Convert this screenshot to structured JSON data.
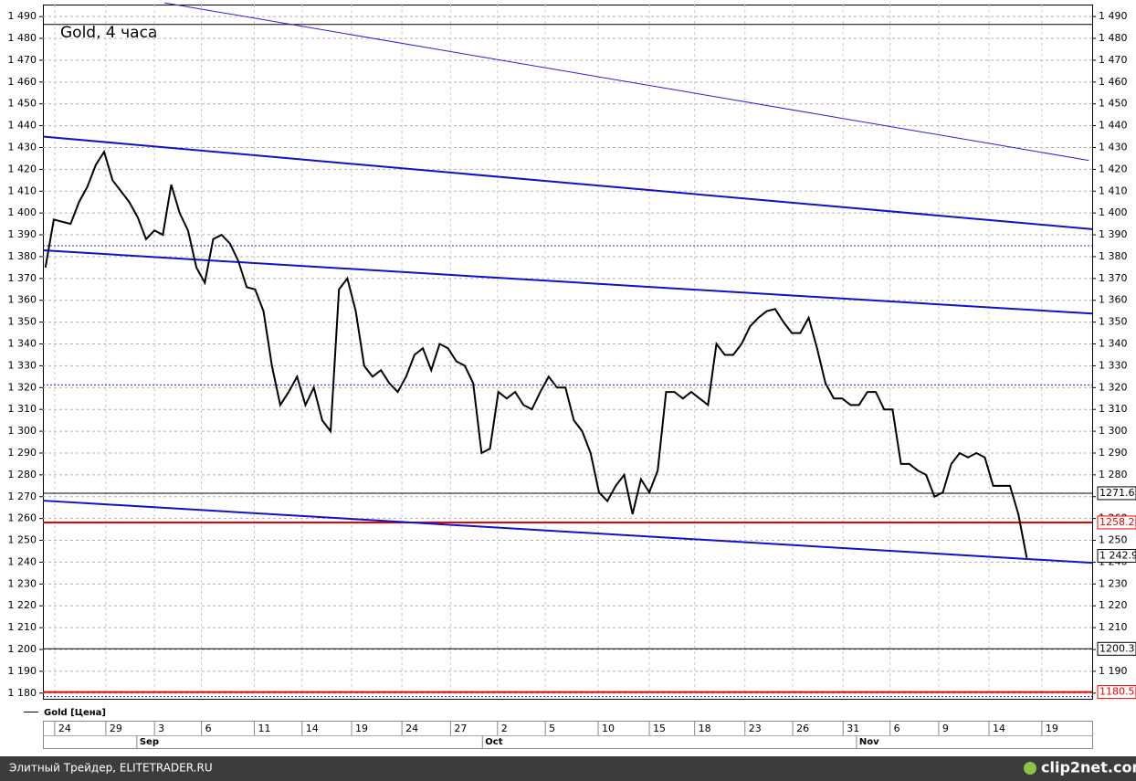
{
  "chart_data": {
    "type": "line",
    "title": "Gold, 4 часа",
    "series": [
      {
        "name": "Gold [Цена]",
        "color": "#000000",
        "values": [
          1375,
          1397,
          1396,
          1395,
          1405,
          1412,
          1422,
          1428,
          1415,
          1410,
          1405,
          1398,
          1388,
          1392,
          1390,
          1413,
          1400,
          1392,
          1375,
          1368,
          1388,
          1390,
          1386,
          1378,
          1366,
          1365,
          1355,
          1330,
          1312,
          1318,
          1325,
          1312,
          1320,
          1305,
          1300,
          1365,
          1370,
          1355,
          1330,
          1325,
          1328,
          1322,
          1318,
          1325,
          1335,
          1338,
          1328,
          1340,
          1338,
          1332,
          1330,
          1322,
          1290,
          1292,
          1318,
          1315,
          1318,
          1312,
          1310,
          1318,
          1325,
          1320,
          1320,
          1305,
          1300,
          1290,
          1272,
          1268,
          1275,
          1280,
          1262,
          1278,
          1272,
          1282,
          1318,
          1318,
          1315,
          1318,
          1315,
          1312,
          1340,
          1335,
          1335,
          1340,
          1348,
          1352,
          1355,
          1356,
          1350,
          1345,
          1345,
          1352,
          1338,
          1322,
          1315,
          1315,
          1312,
          1312,
          1318,
          1318,
          1310,
          1310,
          1285,
          1285,
          1282,
          1280,
          1270,
          1272,
          1285,
          1290,
          1288,
          1290,
          1288,
          1275,
          1275,
          1275,
          1262,
          1242
        ]
      }
    ],
    "xlim": [
      -0.3,
      124.8
    ],
    "xticks": [
      {
        "value": 1.1,
        "label": "24"
      },
      {
        "value": 7.2,
        "label": "29"
      },
      {
        "value": 13.0,
        "label": "3"
      },
      {
        "value": 18.6,
        "label": "6"
      },
      {
        "value": 24.9,
        "label": "11"
      },
      {
        "value": 30.6,
        "label": "14"
      },
      {
        "value": 36.5,
        "label": "19"
      },
      {
        "value": 42.5,
        "label": "24"
      },
      {
        "value": 48.3,
        "label": "27"
      },
      {
        "value": 53.9,
        "label": "2"
      },
      {
        "value": 59.6,
        "label": "5"
      },
      {
        "value": 65.9,
        "label": "10"
      },
      {
        "value": 72.0,
        "label": "15"
      },
      {
        "value": 77.4,
        "label": "18"
      },
      {
        "value": 83.4,
        "label": "23"
      },
      {
        "value": 89.1,
        "label": "26"
      },
      {
        "value": 95.1,
        "label": "31"
      },
      {
        "value": 100.7,
        "label": "6"
      },
      {
        "value": 106.5,
        "label": "9"
      },
      {
        "value": 112.5,
        "label": "14"
      },
      {
        "value": 118.8,
        "label": "19"
      }
    ],
    "months": [
      {
        "value": 10.9,
        "label": "Sep"
      },
      {
        "value": 52.1,
        "label": "Oct"
      },
      {
        "value": 96.7,
        "label": "Nov"
      }
    ],
    "ylim": [
      1177.4,
      1495.5
    ],
    "yticks": [
      {
        "value": 1180,
        "label": "1 180"
      },
      {
        "value": 1190,
        "label": "1 190"
      },
      {
        "value": 1200,
        "label": "1 200"
      },
      {
        "value": 1210,
        "label": "1 210"
      },
      {
        "value": 1220,
        "label": "1 220"
      },
      {
        "value": 1230,
        "label": "1 230"
      },
      {
        "value": 1240,
        "label": "1 240"
      },
      {
        "value": 1250,
        "label": "1 250"
      },
      {
        "value": 1260,
        "label": "1 260"
      },
      {
        "value": 1270,
        "label": "1 270"
      },
      {
        "value": 1280,
        "label": "1 280"
      },
      {
        "value": 1290,
        "label": "1 290"
      },
      {
        "value": 1300,
        "label": "1 300"
      },
      {
        "value": 1310,
        "label": "1 310"
      },
      {
        "value": 1320,
        "label": "1 320"
      },
      {
        "value": 1330,
        "label": "1 330"
      },
      {
        "value": 1340,
        "label": "1 340"
      },
      {
        "value": 1350,
        "label": "1 350"
      },
      {
        "value": 1360,
        "label": "1 360"
      },
      {
        "value": 1370,
        "label": "1 370"
      },
      {
        "value": 1380,
        "label": "1 380"
      },
      {
        "value": 1390,
        "label": "1 390"
      },
      {
        "value": 1400,
        "label": "1 400"
      },
      {
        "value": 1410,
        "label": "1 410"
      },
      {
        "value": 1420,
        "label": "1 420"
      },
      {
        "value": 1430,
        "label": "1 430"
      },
      {
        "value": 1440,
        "label": "1 440"
      },
      {
        "value": 1450,
        "label": "1 450"
      },
      {
        "value": 1460,
        "label": "1 460"
      },
      {
        "value": 1470,
        "label": "1 470"
      },
      {
        "value": 1480,
        "label": "1 480"
      },
      {
        "value": 1490,
        "label": "1 490"
      }
    ],
    "grid": true,
    "trend_lines": [
      {
        "x": [
          14.2,
          124.4
        ],
        "y": [
          1496.3,
          1424.1
        ],
        "color": "#2222dd"
      },
      {
        "x": [
          -0.3,
          124.8
        ],
        "y": [
          1435.0,
          1392.6
        ],
        "color": "#1111cc"
      },
      {
        "x": [
          -0.3,
          124.8
        ],
        "y": [
          1382.9,
          1353.9
        ],
        "color": "#1111cc"
      },
      {
        "x": [
          -0.3,
          124.8
        ],
        "y": [
          1268.2,
          1239.7
        ],
        "color": "#1111cc"
      }
    ],
    "dotted_levels": [
      1385.0,
      1321.2,
      1178.4
    ],
    "top_level": 1486.4,
    "levels": [
      {
        "value": 1271.6,
        "label": "1271.6",
        "color": "#000000"
      },
      {
        "value": 1258.2,
        "label": "1258.2",
        "color": "#ee0000"
      },
      {
        "value": 1200.3,
        "label": "1200.3",
        "color": "#000000"
      },
      {
        "value": 1180.5,
        "label": "1180.5",
        "color": "#ee0000"
      }
    ],
    "last_price": {
      "value": 1242.9,
      "label": "1 242.9"
    },
    "footer_left": "Элитный Трейдер, ELITETRADER.RU",
    "footer_right": "clip2net.com"
  }
}
